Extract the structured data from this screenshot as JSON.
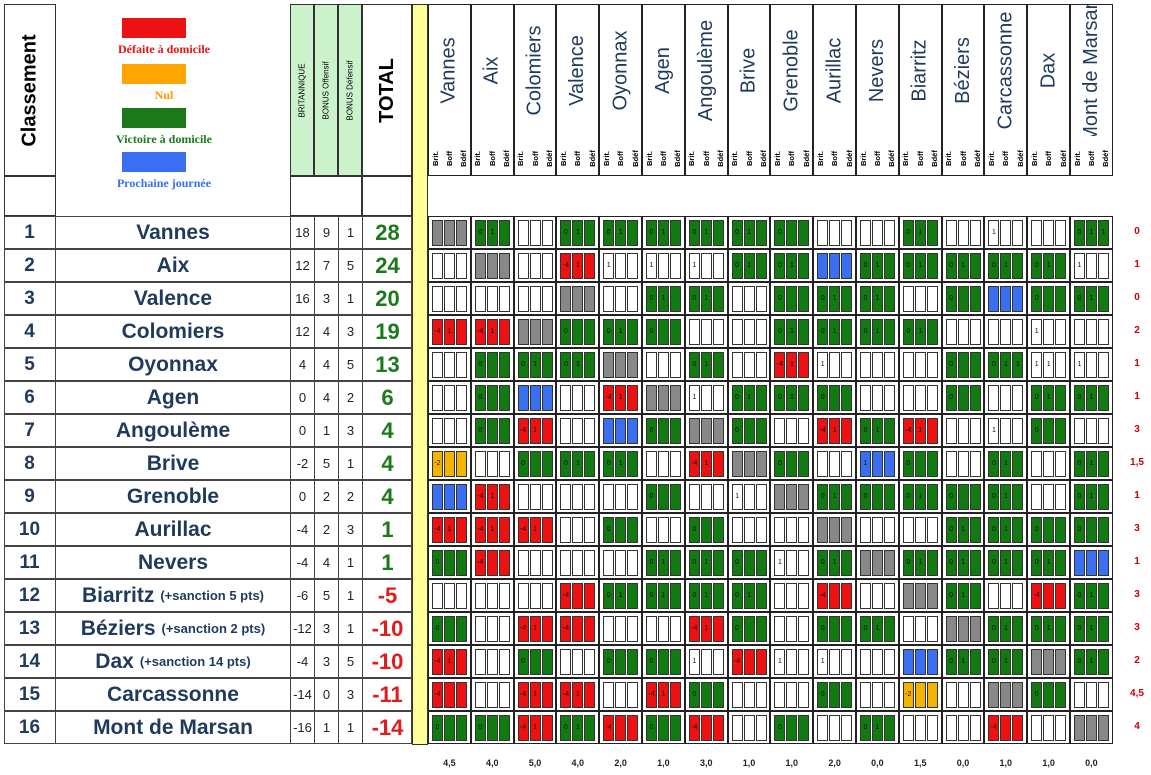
{
  "header": {
    "classement": "Classement",
    "col_brit": "BRITANNIQUE",
    "col_boff": "BONUS Offensif",
    "col_bdef": "BONUS Défensif",
    "col_total": "TOTAL"
  },
  "legend": [
    {
      "label": "Défaite à domicile",
      "color": "#ee1111",
      "text_color": "#ee1111"
    },
    {
      "label": "Nul",
      "color": "#ffa500",
      "text_color": "#ff9900"
    },
    {
      "label": "Victoire à domicile",
      "color": "#1a7a1a",
      "text_color": "#1a7a1a"
    },
    {
      "label": "Prochaine journée",
      "color": "#3a6ff2",
      "text_color": "#3a6ff2"
    }
  ],
  "subcols": [
    "Brit.",
    "Boff",
    "Bdéf"
  ],
  "teams": [
    {
      "rank": "1",
      "name": "Vannes",
      "note": "",
      "brit": "18",
      "boff": "9",
      "bdef": "1",
      "total": "28"
    },
    {
      "rank": "2",
      "name": "Aix",
      "note": "",
      "brit": "12",
      "boff": "7",
      "bdef": "5",
      "total": "24"
    },
    {
      "rank": "3",
      "name": "Valence",
      "note": "",
      "brit": "16",
      "boff": "3",
      "bdef": "1",
      "total": "20"
    },
    {
      "rank": "4",
      "name": "Colomiers",
      "note": "",
      "brit": "12",
      "boff": "4",
      "bdef": "3",
      "total": "19"
    },
    {
      "rank": "5",
      "name": "Oyonnax",
      "note": "",
      "brit": "4",
      "boff": "4",
      "bdef": "5",
      "total": "13"
    },
    {
      "rank": "6",
      "name": "Agen",
      "note": "",
      "brit": "0",
      "boff": "4",
      "bdef": "2",
      "total": "6"
    },
    {
      "rank": "7",
      "name": "Angoulème",
      "note": "",
      "brit": "0",
      "boff": "1",
      "bdef": "3",
      "total": "4"
    },
    {
      "rank": "8",
      "name": "Brive",
      "note": "",
      "brit": "-2",
      "boff": "5",
      "bdef": "1",
      "total": "4"
    },
    {
      "rank": "9",
      "name": "Grenoble",
      "note": "",
      "brit": "0",
      "boff": "2",
      "bdef": "2",
      "total": "4"
    },
    {
      "rank": "10",
      "name": "Aurillac",
      "note": "",
      "brit": "-4",
      "boff": "2",
      "bdef": "3",
      "total": "1"
    },
    {
      "rank": "11",
      "name": "Nevers",
      "note": "",
      "brit": "-4",
      "boff": "4",
      "bdef": "1",
      "total": "1"
    },
    {
      "rank": "12",
      "name": "Biarritz",
      "note": "(+sanction 5 pts)",
      "brit": "-6",
      "boff": "5",
      "bdef": "1",
      "total": "-5"
    },
    {
      "rank": "13",
      "name": "Béziers",
      "note": "(+sanction 2 pts)",
      "brit": "-12",
      "boff": "3",
      "bdef": "1",
      "total": "-10"
    },
    {
      "rank": "14",
      "name": "Dax",
      "note": "(+sanction 14 pts)",
      "brit": "-4",
      "boff": "3",
      "bdef": "5",
      "total": "-10"
    },
    {
      "rank": "15",
      "name": "Carcassonne",
      "note": "",
      "brit": "-14",
      "boff": "0",
      "bdef": "3",
      "total": "-11"
    },
    {
      "rank": "16",
      "name": "Mont de Marsan",
      "note": "",
      "brit": "-16",
      "boff": "1",
      "bdef": "1",
      "total": "-14"
    }
  ],
  "columns": [
    "Vannes",
    "Aix",
    "Colomiers",
    "Valence",
    "Oyonnax",
    "Agen",
    "Angoulème",
    "Brive",
    "Grenoble",
    "Aurillac",
    "Nevers",
    "Biarritz",
    "Béziers",
    "Carcassonne",
    "Dax",
    "Mont de Marsan"
  ],
  "right_values": [
    "0",
    "1",
    "0",
    "2",
    "1",
    "1",
    "3",
    "1,5",
    "1",
    "3",
    "1",
    "3",
    "3",
    "2",
    "4,5",
    "4"
  ],
  "bottom_values": [
    "4,5",
    "4,0",
    "5,0",
    "4,0",
    "2,0",
    "1,0",
    "3,0",
    "1,0",
    "1,0",
    "2,0",
    "0,0",
    "1,5",
    "0,0",
    "1,0",
    "1,0",
    "0,0"
  ],
  "colors": {
    "R": "#ee1111",
    "G": "#117a11",
    "W": "#ffffff",
    "X": "#888888",
    "B": "#3a6ff2",
    "O": "#f5b301",
    "team_name": "#1f3a5c",
    "total_pos": "#1a7a1a",
    "total_neg": "#e21b1b",
    "stat_bg": "#ccf2cc",
    "sep": "#ffff99"
  },
  "grid": [
    [
      [
        "X",
        ""
      ],
      [
        "G",
        "0 1"
      ],
      [
        "W",
        ""
      ],
      [
        "G",
        "0 1"
      ],
      [
        "G",
        "0 1"
      ],
      [
        "G",
        "0 1"
      ],
      [
        "G",
        "0 1"
      ],
      [
        "G",
        "0 1"
      ],
      [
        "G",
        "0"
      ],
      [
        "W",
        ""
      ],
      [
        "W",
        ""
      ],
      [
        "G",
        "0 1"
      ],
      [
        "W",
        ""
      ],
      [
        "W",
        "1"
      ],
      [
        "W",
        ""
      ],
      [
        "G",
        "0 1 1"
      ]
    ],
    [
      [
        "W",
        ""
      ],
      [
        "X",
        ""
      ],
      [
        "W",
        ""
      ],
      [
        "R",
        "-4 1"
      ],
      [
        "W",
        "1"
      ],
      [
        "W",
        "1"
      ],
      [
        "W",
        "1"
      ],
      [
        "G",
        "0 1"
      ],
      [
        "G",
        "0 1"
      ],
      [
        "B",
        ""
      ],
      [
        "G",
        "0 1"
      ],
      [
        "G",
        "0 1"
      ],
      [
        "G",
        "0 1"
      ],
      [
        "G",
        "0 1"
      ],
      [
        "G",
        "0 1"
      ],
      [
        "W",
        "1"
      ]
    ],
    [
      [
        "W",
        ""
      ],
      [
        "W",
        ""
      ],
      [
        "W",
        ""
      ],
      [
        "X",
        ""
      ],
      [
        "W",
        ""
      ],
      [
        "G",
        "0 1"
      ],
      [
        "G",
        "0 1"
      ],
      [
        "W",
        ""
      ],
      [
        "G",
        "0"
      ],
      [
        "G",
        "0 1"
      ],
      [
        "G",
        "0 1"
      ],
      [
        "W",
        ""
      ],
      [
        "G",
        "0"
      ],
      [
        "B",
        ""
      ],
      [
        "G",
        "0"
      ],
      [
        "G",
        "0 1"
      ]
    ],
    [
      [
        "R",
        "-4 1"
      ],
      [
        "R",
        "-4 1"
      ],
      [
        "X",
        ""
      ],
      [
        "G",
        "0"
      ],
      [
        "G",
        "0 1"
      ],
      [
        "G",
        "0"
      ],
      [
        "W",
        ""
      ],
      [
        "W",
        ""
      ],
      [
        "G",
        "0 1"
      ],
      [
        "G",
        "0 1"
      ],
      [
        "G",
        "0 1"
      ],
      [
        "G",
        "0 1"
      ],
      [
        "W",
        ""
      ],
      [
        "W",
        ""
      ],
      [
        "W",
        "1"
      ],
      [
        "W",
        ""
      ]
    ],
    [
      [
        "W",
        ""
      ],
      [
        "G",
        "0"
      ],
      [
        "G",
        "0 1"
      ],
      [
        "G",
        "0 1"
      ],
      [
        "X",
        ""
      ],
      [
        "W",
        ""
      ],
      [
        "G",
        "0 1"
      ],
      [
        "W",
        ""
      ],
      [
        "R",
        "-4 1"
      ],
      [
        "W",
        "1"
      ],
      [
        "W",
        ""
      ],
      [
        "W",
        ""
      ],
      [
        "G",
        "0"
      ],
      [
        "G",
        "0 1 1"
      ],
      [
        "W",
        "1 1"
      ],
      [
        "W",
        "1"
      ]
    ],
    [
      [
        "W",
        ""
      ],
      [
        "G",
        "0"
      ],
      [
        "B",
        ""
      ],
      [
        "W",
        ""
      ],
      [
        "R",
        "-4 1"
      ],
      [
        "X",
        ""
      ],
      [
        "W",
        "1"
      ],
      [
        "G",
        "0 1"
      ],
      [
        "G",
        "0 1"
      ],
      [
        "G",
        "0"
      ],
      [
        "W",
        ""
      ],
      [
        "W",
        ""
      ],
      [
        "G",
        "0"
      ],
      [
        "W",
        ""
      ],
      [
        "G",
        "0 1"
      ],
      [
        "G",
        "0 1"
      ]
    ],
    [
      [
        "W",
        ""
      ],
      [
        "G",
        "0"
      ],
      [
        "R",
        "-4 1"
      ],
      [
        "W",
        ""
      ],
      [
        "B",
        ""
      ],
      [
        "G",
        "0"
      ],
      [
        "X",
        ""
      ],
      [
        "G",
        "0"
      ],
      [
        "W",
        ""
      ],
      [
        "R",
        "-4 1"
      ],
      [
        "G",
        "0 1"
      ],
      [
        "R",
        "-4 1"
      ],
      [
        "W",
        ""
      ],
      [
        "W",
        "1"
      ],
      [
        "G",
        "0"
      ],
      [
        "W",
        ""
      ]
    ],
    [
      [
        "O",
        "-2"
      ],
      [
        "W",
        ""
      ],
      [
        "G",
        "0"
      ],
      [
        "G",
        "0 1"
      ],
      [
        "G",
        "0 1"
      ],
      [
        "W",
        ""
      ],
      [
        "R",
        "-4 1"
      ],
      [
        "X",
        ""
      ],
      [
        "G",
        "0"
      ],
      [
        "W",
        ""
      ],
      [
        "B",
        "1"
      ],
      [
        "G",
        "0"
      ],
      [
        "W",
        ""
      ],
      [
        "G",
        "0 1"
      ],
      [
        "W",
        ""
      ],
      [
        "G",
        "0 1"
      ]
    ],
    [
      [
        "B",
        ""
      ],
      [
        "R",
        "-4 1"
      ],
      [
        "W",
        ""
      ],
      [
        "W",
        ""
      ],
      [
        "W",
        ""
      ],
      [
        "G",
        "0"
      ],
      [
        "W",
        ""
      ],
      [
        "W",
        "1"
      ],
      [
        "X",
        ""
      ],
      [
        "G",
        "0 1"
      ],
      [
        "G",
        "0"
      ],
      [
        "G",
        "0 1"
      ],
      [
        "G",
        "0"
      ],
      [
        "G",
        "0 1"
      ],
      [
        "W",
        ""
      ],
      [
        "G",
        "0 1"
      ]
    ],
    [
      [
        "R",
        "-4 1"
      ],
      [
        "R",
        "-4 1"
      ],
      [
        "R",
        "-4 1"
      ],
      [
        "W",
        ""
      ],
      [
        "G",
        "0"
      ],
      [
        "W",
        ""
      ],
      [
        "G",
        "0"
      ],
      [
        "W",
        ""
      ],
      [
        "W",
        ""
      ],
      [
        "X",
        ""
      ],
      [
        "W",
        ""
      ],
      [
        "W",
        ""
      ],
      [
        "G",
        "0 1"
      ],
      [
        "G",
        "0 1"
      ],
      [
        "G",
        "0"
      ],
      [
        "G",
        "0"
      ]
    ],
    [
      [
        "G",
        "0"
      ],
      [
        "R",
        "-4"
      ],
      [
        "W",
        ""
      ],
      [
        "W",
        ""
      ],
      [
        "W",
        ""
      ],
      [
        "G",
        "0 1"
      ],
      [
        "G",
        "0 1"
      ],
      [
        "G",
        "0"
      ],
      [
        "W",
        "1"
      ],
      [
        "G",
        "0 1"
      ],
      [
        "X",
        ""
      ],
      [
        "G",
        "0 1"
      ],
      [
        "G",
        "0 1"
      ],
      [
        "G",
        "0 1"
      ],
      [
        "G",
        "0 1"
      ],
      [
        "B",
        ""
      ]
    ],
    [
      [
        "W",
        ""
      ],
      [
        "W",
        ""
      ],
      [
        "W",
        ""
      ],
      [
        "R",
        "-4"
      ],
      [
        "G",
        "0 1"
      ],
      [
        "G",
        "0 1"
      ],
      [
        "G",
        "0 1"
      ],
      [
        "G",
        "0 1"
      ],
      [
        "W",
        ""
      ],
      [
        "R",
        "-4"
      ],
      [
        "W",
        ""
      ],
      [
        "X",
        ""
      ],
      [
        "G",
        "0 1"
      ],
      [
        "W",
        ""
      ],
      [
        "R",
        "-4"
      ],
      [
        "G",
        "0 1"
      ]
    ],
    [
      [
        "G",
        "0"
      ],
      [
        "W",
        ""
      ],
      [
        "R",
        "-4 1"
      ],
      [
        "R",
        "-4"
      ],
      [
        "W",
        ""
      ],
      [
        "W",
        ""
      ],
      [
        "R",
        "-4 1"
      ],
      [
        "G",
        "0"
      ],
      [
        "W",
        ""
      ],
      [
        "G",
        "0"
      ],
      [
        "G",
        "0 1"
      ],
      [
        "W",
        ""
      ],
      [
        "X",
        ""
      ],
      [
        "G",
        "0 1"
      ],
      [
        "G",
        "0 1"
      ],
      [
        "G",
        "0 1"
      ]
    ],
    [
      [
        "R",
        "-4 1"
      ],
      [
        "W",
        ""
      ],
      [
        "G",
        "0"
      ],
      [
        "W",
        ""
      ],
      [
        "G",
        "0"
      ],
      [
        "G",
        "0"
      ],
      [
        "W",
        "1"
      ],
      [
        "R",
        "-4"
      ],
      [
        "W",
        "1"
      ],
      [
        "W",
        "1"
      ],
      [
        "W",
        ""
      ],
      [
        "B",
        ""
      ],
      [
        "G",
        "0 1"
      ],
      [
        "G",
        "0 1"
      ],
      [
        "X",
        ""
      ],
      [
        "G",
        "0 1"
      ]
    ],
    [
      [
        "R",
        "-4"
      ],
      [
        "W",
        ""
      ],
      [
        "R",
        "-4 1"
      ],
      [
        "R",
        "-4 1"
      ],
      [
        "W",
        ""
      ],
      [
        "R",
        "-4 1"
      ],
      [
        "G",
        "0"
      ],
      [
        "W",
        ""
      ],
      [
        "W",
        ""
      ],
      [
        "G",
        "0"
      ],
      [
        "W",
        ""
      ],
      [
        "O",
        "-2"
      ],
      [
        "W",
        ""
      ],
      [
        "X",
        ""
      ],
      [
        "G",
        "0"
      ],
      [
        "W",
        ""
      ]
    ],
    [
      [
        "G",
        "0"
      ],
      [
        "G",
        "0"
      ],
      [
        "R",
        "-4 1"
      ],
      [
        "G",
        "0 1"
      ],
      [
        "R",
        "-4"
      ],
      [
        "G",
        "0"
      ],
      [
        "R",
        "-4"
      ],
      [
        "W",
        ""
      ],
      [
        "G",
        "0"
      ],
      [
        "W",
        ""
      ],
      [
        "G",
        "0 1"
      ],
      [
        "W",
        ""
      ],
      [
        "W",
        ""
      ],
      [
        "R",
        "-4"
      ],
      [
        "W",
        ""
      ],
      [
        "X",
        ""
      ]
    ]
  ]
}
